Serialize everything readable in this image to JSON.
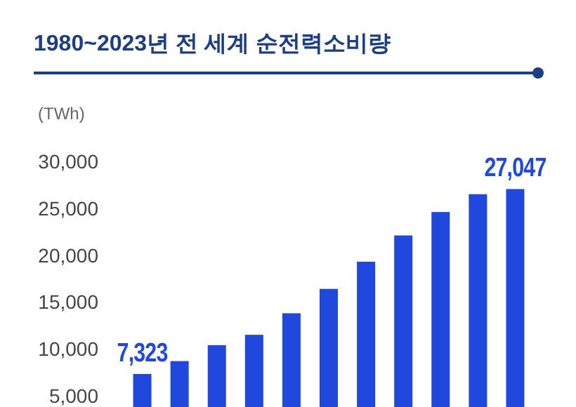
{
  "chart_data": {
    "type": "bar",
    "title": "1980~2023년 전 세계 순전력소비량",
    "ylabel": "(TWh)",
    "categories": [
      null,
      null,
      null,
      null,
      null,
      null,
      null,
      null,
      null,
      null,
      null
    ],
    "values": [
      7323,
      8700,
      10400,
      11500,
      13800,
      16400,
      19300,
      22100,
      24600,
      26500,
      27047
    ],
    "value_labels": [
      "7,323",
      null,
      null,
      null,
      null,
      null,
      null,
      null,
      null,
      null,
      "27,047"
    ],
    "color": "#2148dc",
    "ylim": [
      3800,
      30000
    ],
    "yticks": [
      {
        "value": 5000,
        "label": "5,000"
      },
      {
        "value": 10000,
        "label": "10,000"
      },
      {
        "value": 15000,
        "label": "15,000"
      },
      {
        "value": 20000,
        "label": "20,000"
      },
      {
        "value": 25000,
        "label": "25,000"
      },
      {
        "value": 30000,
        "label": "30,000"
      }
    ],
    "grid": false
  }
}
